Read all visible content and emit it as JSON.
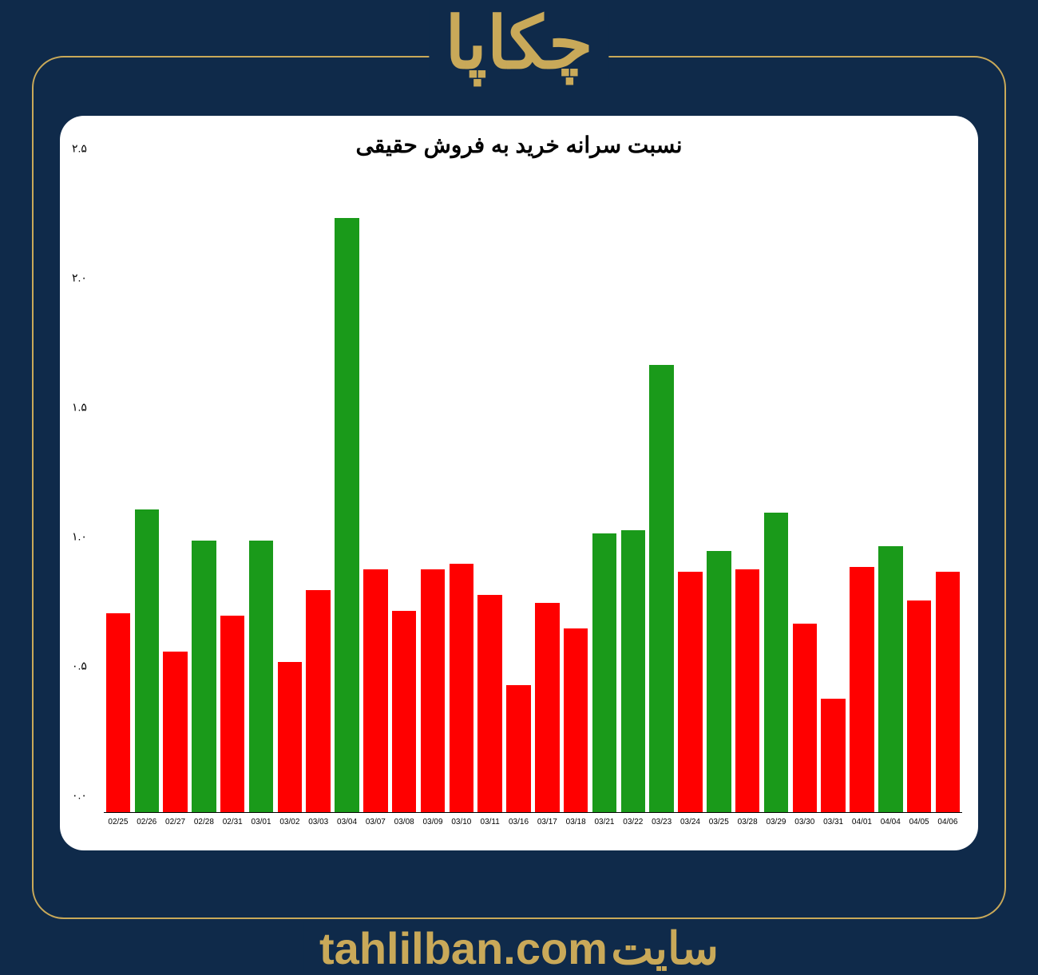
{
  "logo_text": "چکاپا",
  "footer_word": "سایت",
  "footer_site": "tahlilban.com",
  "background_color": "#0f2a4a",
  "accent_color": "#c9a959",
  "card_bg": "#ffffff",
  "chart": {
    "type": "bar",
    "title": "نسبت سرانه خرید به فروش حقیقی",
    "title_fontsize": 28,
    "title_color": "#000000",
    "ylim": [
      0.0,
      2.5
    ],
    "ytick_step": 0.5,
    "yticks_labels": [
      "۰.۰",
      "۰.۵",
      "۱.۰",
      "۱.۵",
      "۲.۰",
      "۲.۵"
    ],
    "x_label_fontsize": 10,
    "y_label_fontsize": 14,
    "bar_width_ratio": 0.85,
    "colors": {
      "up": "#1a9a1a",
      "down": "#ff0000"
    },
    "categories": [
      "02/25",
      "02/26",
      "02/27",
      "02/28",
      "02/31",
      "03/01",
      "03/02",
      "03/03",
      "03/04",
      "03/07",
      "03/08",
      "03/09",
      "03/10",
      "03/11",
      "03/16",
      "03/17",
      "03/18",
      "03/21",
      "03/22",
      "03/23",
      "03/24",
      "03/25",
      "03/28",
      "03/29",
      "03/30",
      "03/31",
      "04/01",
      "04/04",
      "04/05",
      "04/06"
    ],
    "values": [
      0.77,
      1.17,
      0.62,
      1.05,
      0.76,
      1.05,
      0.58,
      0.86,
      2.3,
      0.94,
      0.78,
      0.94,
      0.96,
      0.84,
      0.49,
      0.81,
      0.71,
      1.08,
      1.09,
      1.73,
      0.93,
      1.01,
      0.94,
      1.16,
      0.73,
      0.44,
      0.95,
      1.03,
      0.82,
      0.93
    ],
    "bar_colors": [
      "#ff0000",
      "#1a9a1a",
      "#ff0000",
      "#1a9a1a",
      "#ff0000",
      "#1a9a1a",
      "#ff0000",
      "#ff0000",
      "#1a9a1a",
      "#ff0000",
      "#ff0000",
      "#ff0000",
      "#ff0000",
      "#ff0000",
      "#ff0000",
      "#ff0000",
      "#ff0000",
      "#1a9a1a",
      "#1a9a1a",
      "#1a9a1a",
      "#ff0000",
      "#1a9a1a",
      "#ff0000",
      "#1a9a1a",
      "#ff0000",
      "#ff0000",
      "#ff0000",
      "#1a9a1a",
      "#ff0000",
      "#ff0000"
    ]
  }
}
